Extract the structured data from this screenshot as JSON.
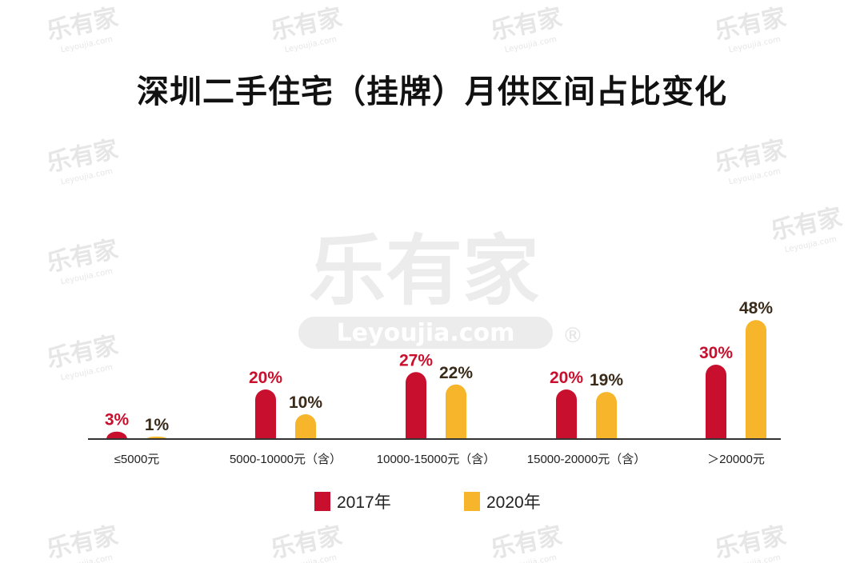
{
  "watermark": {
    "logo_text": "乐有家",
    "logo_url_text": "Leyoujia.com",
    "color": "#e6e6e6"
  },
  "chart_data": {
    "type": "bar",
    "title": "深圳二手住宅（挂牌）月供区间占比变化",
    "categories": [
      "≤5000元",
      "5000-10000元（含）",
      "10000-15000元（含）",
      "15000-20000元（含）",
      "＞20000元"
    ],
    "series": [
      {
        "name": "2017年",
        "color": "#c8102e",
        "values": [
          3,
          20,
          27,
          20,
          30
        ],
        "labels": [
          "3%",
          "20%",
          "27%",
          "20%",
          "30%"
        ],
        "label_color": "#c8102e"
      },
      {
        "name": "2020年",
        "color": "#f6b52a",
        "values": [
          1,
          10,
          22,
          19,
          48
        ],
        "labels": [
          "1%",
          "10%",
          "22%",
          "19%",
          "48%"
        ],
        "label_color": "#3a2a1a"
      }
    ],
    "ylim": [
      0,
      50
    ],
    "grid": false,
    "y_axis_shown": false,
    "legend_placement": "bottom"
  }
}
